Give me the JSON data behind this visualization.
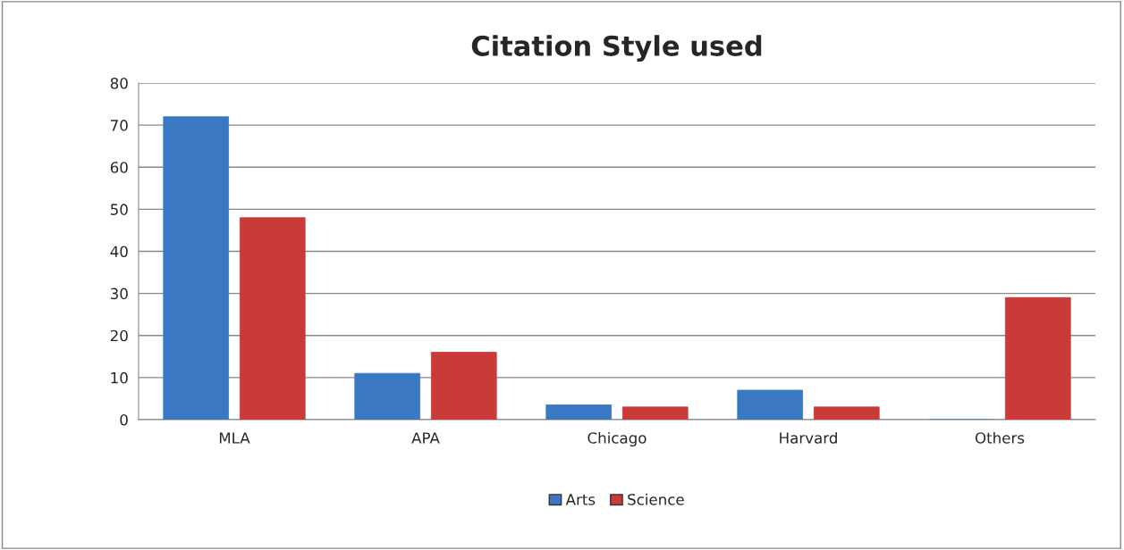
{
  "chart_data": {
    "type": "bar",
    "title": "Citation Style used",
    "categories": [
      "MLA",
      "APA",
      "Chicago",
      "Harvard",
      "Others"
    ],
    "series": [
      {
        "name": "Arts",
        "color": "#3a78c3",
        "values": [
          72,
          11,
          3.5,
          7,
          0
        ]
      },
      {
        "name": "Science",
        "color": "#c93a38",
        "values": [
          48,
          16,
          3,
          3,
          29
        ]
      }
    ],
    "ylim": [
      0,
      80
    ],
    "yticks": [
      0,
      10,
      20,
      30,
      40,
      50,
      60,
      70,
      80
    ],
    "grid": "y",
    "legend": "bottom"
  }
}
